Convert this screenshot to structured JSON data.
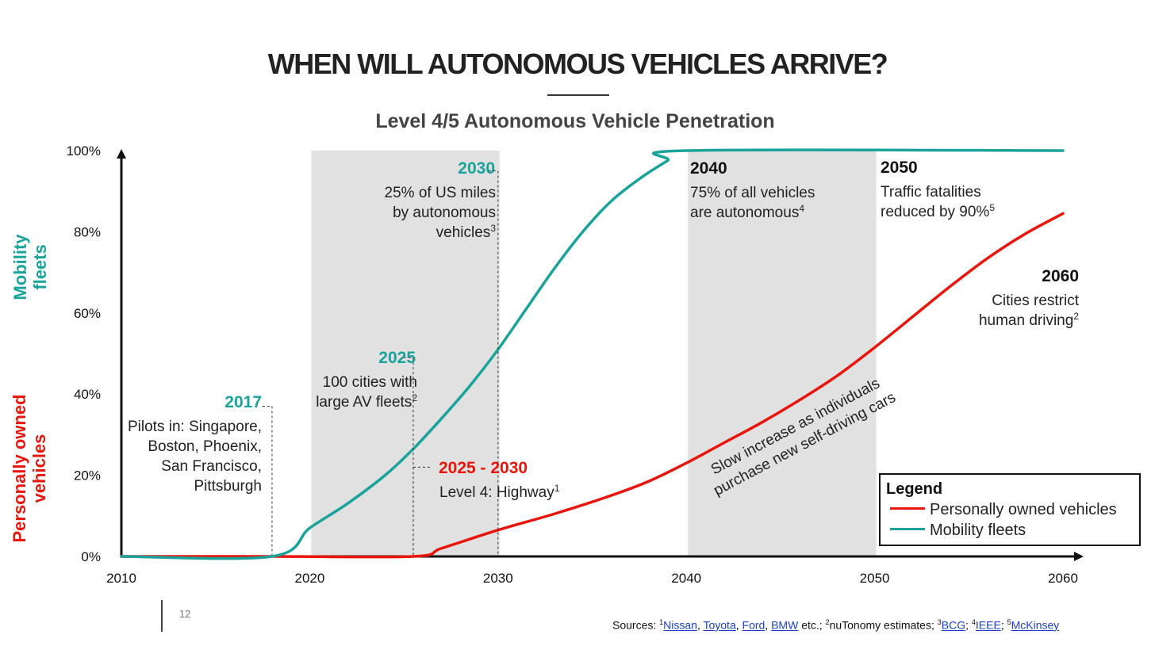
{
  "title": "WHEN WILL AUTONOMOUS VEHICLES ARRIVE?",
  "page_number": "12",
  "y_group_labels": {
    "fleets": [
      "Mobility",
      "fleets"
    ],
    "personal": [
      "Personally owned",
      "vehicles"
    ]
  },
  "colors": {
    "fleets": "#1aa39a",
    "personal": "#e8150c",
    "shade": "#e1e1e1",
    "axis": "#111111"
  },
  "chart_data": {
    "type": "line",
    "title": "Level 4/5 Autonomous Vehicle Penetration",
    "xlabel": "",
    "ylabel": "",
    "xlim": [
      2010,
      2060
    ],
    "ylim": [
      0,
      100
    ],
    "x_ticks": [
      "2010",
      "2020",
      "2030",
      "2040",
      "2050",
      "2060"
    ],
    "y_ticks": [
      "0%",
      "20%",
      "40%",
      "60%",
      "80%",
      "100%"
    ],
    "grid": false,
    "shaded_ranges": [
      [
        2020,
        2030
      ],
      [
        2040,
        2050
      ]
    ],
    "series": [
      {
        "name": "Personally owned vehicles",
        "color": "#e8150c",
        "points": [
          [
            2010,
            0
          ],
          [
            2018,
            0
          ],
          [
            2025.5,
            0
          ],
          [
            2027,
            2
          ],
          [
            2030,
            6.5
          ],
          [
            2033,
            10.5
          ],
          [
            2036,
            15
          ],
          [
            2038,
            18.5
          ],
          [
            2040,
            23
          ],
          [
            2042,
            28
          ],
          [
            2044,
            33
          ],
          [
            2046,
            38.5
          ],
          [
            2048,
            44.5
          ],
          [
            2050,
            51.5
          ],
          [
            2052,
            59
          ],
          [
            2054,
            66.5
          ],
          [
            2056,
            73.5
          ],
          [
            2058,
            79.5
          ],
          [
            2060,
            84.5
          ]
        ]
      },
      {
        "name": "Mobility fleets",
        "color": "#1aa39a",
        "points": [
          [
            2010,
            0
          ],
          [
            2018,
            0
          ],
          [
            2020,
            7
          ],
          [
            2022,
            13
          ],
          [
            2024,
            20
          ],
          [
            2025.5,
            26.5
          ],
          [
            2027,
            34
          ],
          [
            2028.5,
            42
          ],
          [
            2030,
            51
          ],
          [
            2031.5,
            61
          ],
          [
            2033,
            71
          ],
          [
            2034.5,
            80
          ],
          [
            2036,
            87.5
          ],
          [
            2037.5,
            93
          ],
          [
            2039,
            97.5
          ],
          [
            2040,
            100
          ],
          [
            2060,
            100
          ]
        ]
      }
    ],
    "legend": {
      "title": "Legend",
      "position": "bottom-right",
      "entries": [
        "Personally owned vehicles",
        "Mobility fleets"
      ]
    },
    "annotations": [
      {
        "id": "a2017",
        "year": "2017",
        "color": "#1aa39a",
        "lines": [
          "Pilots in: Singapore,",
          "Boston, Phoenix,",
          "San Francisco,",
          "Pittsburgh"
        ],
        "sup": "",
        "align": "right",
        "marker_x": 2018,
        "marker_y": 37
      },
      {
        "id": "a2025",
        "year": "2025",
        "color": "#1aa39a",
        "lines": [
          "100 cities with",
          "large AV fleets"
        ],
        "sup": "2",
        "align": "right",
        "marker_x": 2025.5,
        "marker_y": 49
      },
      {
        "id": "a2030",
        "year": "2030",
        "color": "#1aa39a",
        "lines": [
          "25% of US miles",
          "by autonomous",
          "vehicles"
        ],
        "sup": "3",
        "align": "right",
        "marker_x": 2030,
        "marker_y": 95
      },
      {
        "id": "a2025_2030",
        "year": "2025 - 2030",
        "color": "#e8150c",
        "lines": [
          "Level 4: Highway"
        ],
        "sup": "1",
        "align": "left",
        "marker_x": 2025.5,
        "marker_y": 22
      },
      {
        "id": "a2040",
        "year": "2040",
        "color": "#111111",
        "lines": [
          "75% of all vehicles",
          "are autonomous"
        ],
        "sup": "4",
        "align": "left"
      },
      {
        "id": "a2050",
        "year": "2050",
        "color": "#111111",
        "lines": [
          "Traffic fatalities",
          "reduced by 90%"
        ],
        "sup": "5",
        "align": "left"
      },
      {
        "id": "a2060",
        "year": "2060",
        "color": "#111111",
        "lines": [
          "Cities restrict",
          "human driving"
        ],
        "sup": "2",
        "align": "right"
      }
    ],
    "curve_note": [
      "Slow increase as individuals",
      "purchase new self-driving cars"
    ]
  },
  "sources": {
    "prefix": "Sources: ",
    "items": [
      {
        "sup": "1",
        "text": "Nissan",
        "link": true,
        "after": ", "
      },
      {
        "sup": "",
        "text": "Toyota",
        "link": true,
        "after": ", "
      },
      {
        "sup": "",
        "text": "Ford",
        "link": true,
        "after": ", "
      },
      {
        "sup": "",
        "text": "BMW",
        "link": true,
        "after": " etc.; "
      },
      {
        "sup": "2",
        "text": "nuTonomy estimates",
        "link": false,
        "after": "; "
      },
      {
        "sup": "3",
        "text": "BCG",
        "link": true,
        "after": "; "
      },
      {
        "sup": "4",
        "text": "IEEE",
        "link": true,
        "after": "; "
      },
      {
        "sup": "5",
        "text": "McKinsey",
        "link": true,
        "after": ""
      }
    ]
  }
}
